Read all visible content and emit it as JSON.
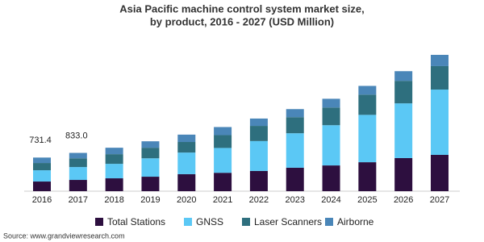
{
  "chart_data": {
    "type": "stacked_bar",
    "title": "Asia Pacific machine control system market size,",
    "subtitle": "by product, 2016 - 2027 (USD Million)",
    "categories": [
      "2016",
      "2017",
      "2018",
      "2019",
      "2020",
      "2021",
      "2022",
      "2023",
      "2024",
      "2025",
      "2026",
      "2027"
    ],
    "series": [
      {
        "name": "Total Stations",
        "color": "#2d0f3f",
        "values": [
          210,
          245,
          280,
          315,
          370,
          400,
          440,
          510,
          560,
          630,
          720,
          790
        ]
      },
      {
        "name": "GNSS",
        "color": "#5bc8f5",
        "values": [
          245,
          280,
          315,
          400,
          470,
          540,
          650,
          750,
          875,
          1030,
          1190,
          1420
        ]
      },
      {
        "name": "Laser Scanners",
        "color": "#2e6f7e",
        "values": [
          158,
          190,
          210,
          230,
          230,
          280,
          330,
          350,
          385,
          440,
          490,
          510
        ]
      },
      {
        "name": "Airborne",
        "color": "#4a86b8",
        "values": [
          118.4,
          118,
          140,
          140,
          160,
          175,
          160,
          175,
          190,
          190,
          210,
          245
        ]
      }
    ],
    "totals": [
      731.4,
      {
        "value": 833.0,
        "label": "833.0"
      }
    ],
    "source": "Source: www.grandviewresearch.com"
  }
}
